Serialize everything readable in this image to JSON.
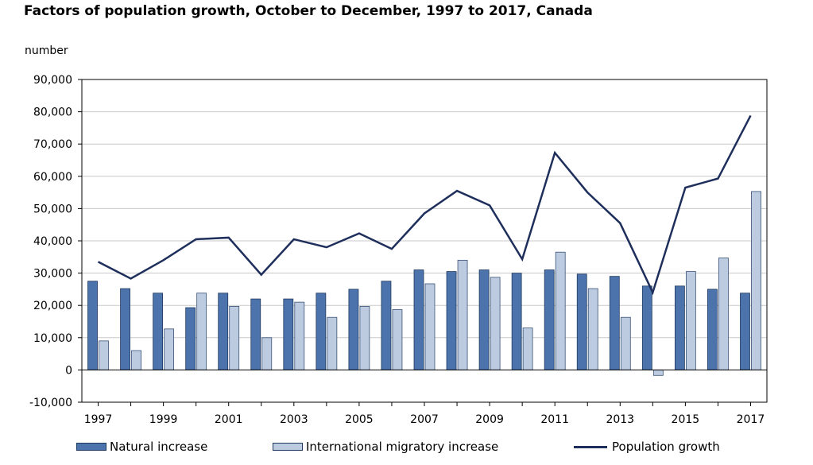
{
  "colors": {
    "natural": "#4d73ac",
    "migratory": "#bccbe0",
    "growth": "#1f2f5c",
    "grid": "#c8c8c8",
    "axis": "#000000"
  },
  "chart_data": {
    "type": "bar",
    "title": "Factors of population growth, October to December, 1997 to 2017, Canada",
    "ylabel": "number",
    "xlabel": "",
    "ylim": [
      -10000,
      90000
    ],
    "yticks": [
      -10000,
      0,
      10000,
      20000,
      30000,
      40000,
      50000,
      60000,
      70000,
      80000,
      90000
    ],
    "ytick_labels": [
      "-10,000",
      "0",
      "10,000",
      "20,000",
      "30,000",
      "40,000",
      "50,000",
      "60,000",
      "70,000",
      "80,000",
      "90,000"
    ],
    "categories": [
      "1997",
      "1998",
      "1999",
      "2000",
      "2001",
      "2002",
      "2003",
      "2004",
      "2005",
      "2006",
      "2007",
      "2008",
      "2009",
      "2010",
      "2011",
      "2012",
      "2013",
      "2014",
      "2015",
      "2016",
      "2017"
    ],
    "xtick_labels": [
      "1997",
      "",
      "1999",
      "",
      "2001",
      "",
      "2003",
      "",
      "2005",
      "",
      "2007",
      "",
      "2009",
      "",
      "2011",
      "",
      "2013",
      "",
      "2015",
      "",
      "2017"
    ],
    "series": [
      {
        "name": "Natural increase",
        "kind": "bar",
        "values": [
          27500,
          25200,
          23800,
          19300,
          23800,
          22000,
          22000,
          23800,
          25000,
          27500,
          31000,
          30500,
          31000,
          30000,
          31000,
          29700,
          29000,
          26000,
          26000,
          25000,
          23800
        ]
      },
      {
        "name": "International migratory increase",
        "kind": "bar",
        "values": [
          9000,
          6000,
          12700,
          23800,
          19700,
          10000,
          21000,
          16300,
          19700,
          18700,
          26700,
          34000,
          28700,
          13000,
          36500,
          25200,
          16300,
          -1700,
          30500,
          34700,
          55300
        ]
      },
      {
        "name": "Population growth",
        "kind": "line",
        "values": [
          33500,
          28300,
          34000,
          40500,
          41000,
          29500,
          40500,
          38000,
          42300,
          37500,
          48500,
          55500,
          51000,
          34300,
          67300,
          55000,
          45500,
          24000,
          56500,
          59300,
          78800
        ]
      }
    ],
    "legend": "bottom",
    "grid": true
  },
  "legend_items": [
    {
      "label": "Natural increase"
    },
    {
      "label": "International migratory increase"
    },
    {
      "label": "Population growth"
    }
  ]
}
